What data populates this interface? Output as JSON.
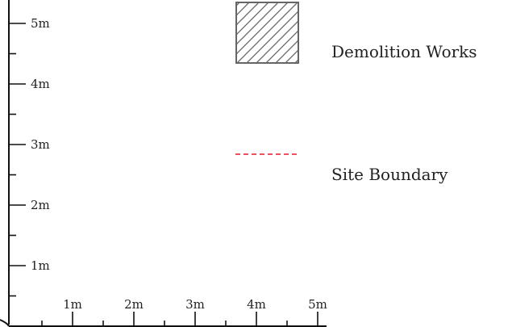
{
  "scale_bar": {
    "y_ticks": [
      {
        "value": 1,
        "label": "1m"
      },
      {
        "value": 2,
        "label": "2m"
      },
      {
        "value": 3,
        "label": "3m"
      },
      {
        "value": 4,
        "label": "4m"
      },
      {
        "value": 5,
        "label": "5m"
      }
    ],
    "x_ticks": [
      {
        "value": 1,
        "label": "1m"
      },
      {
        "value": 2,
        "label": "2m"
      },
      {
        "value": 3,
        "label": "3m"
      },
      {
        "value": 4,
        "label": "4m"
      },
      {
        "value": 5,
        "label": "5m"
      }
    ]
  },
  "legend": {
    "demolition_works": {
      "label": "Demolition Works",
      "stroke_color": "#666666"
    },
    "site_boundary": {
      "label": "Site Boundary",
      "stroke_color": "#e8192c"
    }
  },
  "colors": {
    "axis": "#111111",
    "text": "#222222",
    "background": "#ffffff"
  }
}
